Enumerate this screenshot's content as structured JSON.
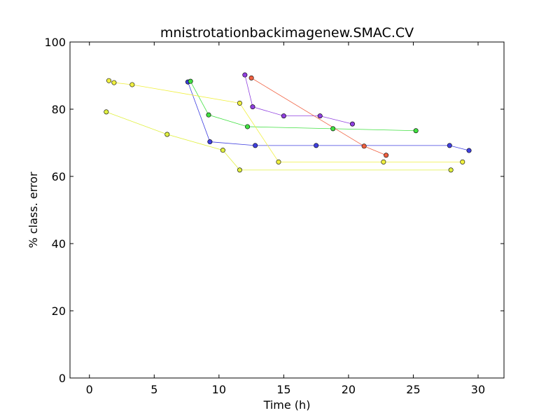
{
  "chart_data": {
    "type": "line",
    "title": "mnistrotationbackimagenew.SMAC.CV",
    "xlabel": "Time (h)",
    "ylabel": "% class. error",
    "xlim": [
      -1.5,
      32
    ],
    "ylim": [
      0,
      100
    ],
    "xticks": [
      "0",
      "5",
      "10",
      "15",
      "20",
      "25",
      "30"
    ],
    "yticks": [
      "0",
      "20",
      "40",
      "60",
      "80",
      "100"
    ],
    "grid": false,
    "series": [
      {
        "color": "#4040e0",
        "points": [
          [
            7.6,
            88.1
          ],
          [
            9.3,
            70.3
          ],
          [
            12.8,
            69.2
          ],
          [
            17.5,
            69.2
          ],
          [
            27.8,
            69.2
          ],
          [
            29.3,
            67.7
          ]
        ]
      },
      {
        "color": "#40e040",
        "points": [
          [
            7.8,
            88.3
          ],
          [
            9.2,
            78.3
          ],
          [
            12.2,
            74.8
          ],
          [
            18.8,
            74.2
          ],
          [
            25.2,
            73.6
          ]
        ]
      },
      {
        "color": "#9040e0",
        "points": [
          [
            12.0,
            90.2
          ],
          [
            12.6,
            80.7
          ],
          [
            15.0,
            78.0
          ],
          [
            17.8,
            78.0
          ],
          [
            20.3,
            75.6
          ]
        ]
      },
      {
        "color": "#f06040",
        "points": [
          [
            12.5,
            89.3
          ],
          [
            21.2,
            69.0
          ],
          [
            22.9,
            66.3
          ]
        ]
      },
      {
        "color": "#f0f040",
        "points": [
          [
            1.5,
            88.5
          ],
          [
            1.9,
            87.9
          ],
          [
            3.3,
            87.3
          ],
          [
            11.6,
            81.8
          ],
          [
            14.6,
            64.3
          ],
          [
            22.7,
            64.3
          ],
          [
            28.8,
            64.3
          ]
        ]
      },
      {
        "color": "#e0f040",
        "points": [
          [
            1.3,
            79.2
          ],
          [
            6.0,
            72.5
          ],
          [
            10.3,
            67.8
          ],
          [
            11.6,
            61.9
          ],
          [
            27.9,
            61.9
          ]
        ]
      }
    ]
  }
}
